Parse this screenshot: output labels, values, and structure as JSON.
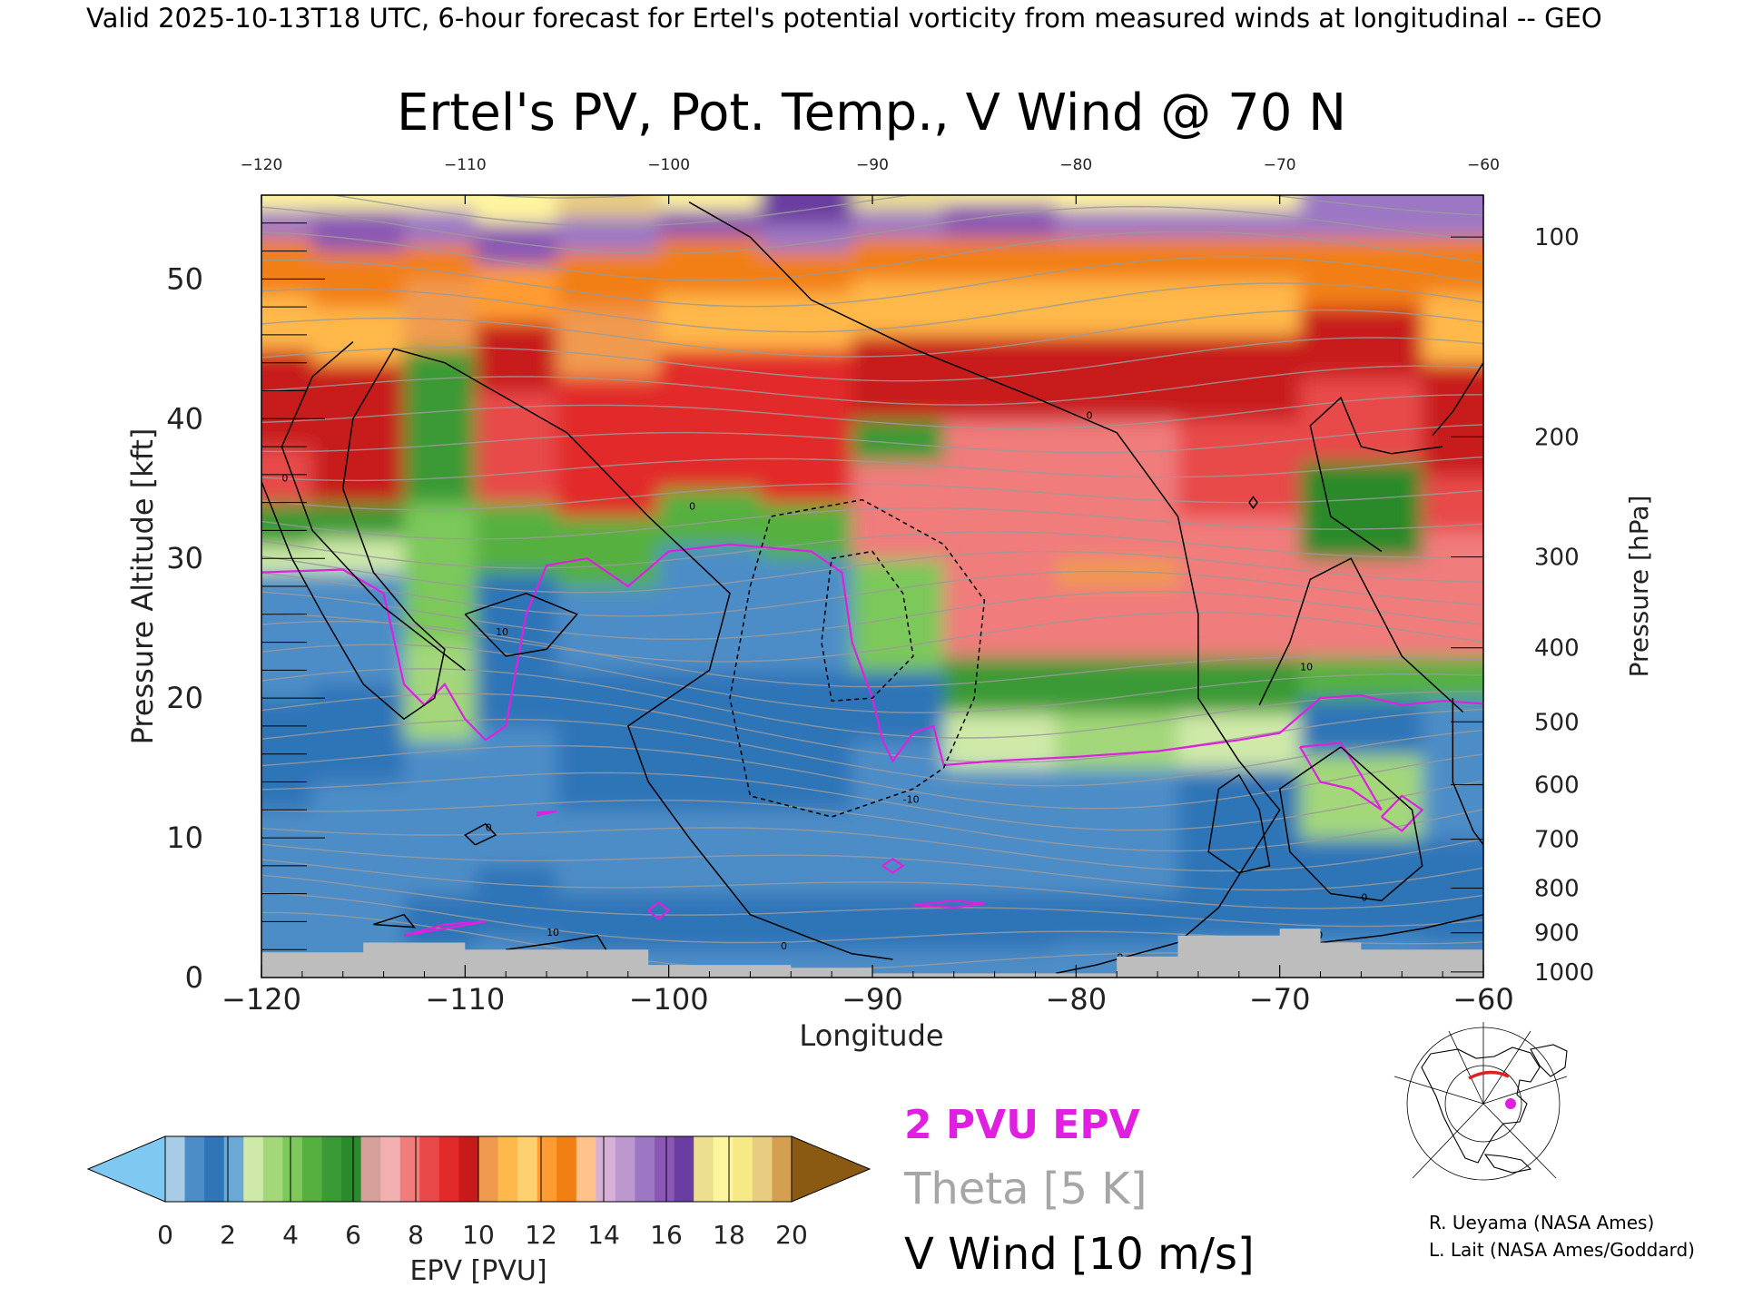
{
  "header": {
    "valid_line": "Valid 2025-10-13T18 UTC, 6-hour forecast for Ertel's potential vorticity from measured winds at longitudinal -- GEO"
  },
  "chart_data": {
    "type": "heatmap",
    "title": "Ertel's PV, Pot. Temp., V Wind @ 70 N",
    "xlabel": "Longitude",
    "ylabel_left": "Pressure Altitude [kft]",
    "ylabel_right": "Pressure [hPa]",
    "xlim": [
      -120,
      -60
    ],
    "ylim": [
      0,
      56
    ],
    "x_ticks": [
      -120,
      -110,
      -100,
      -90,
      -80,
      -70,
      -60
    ],
    "x_tick_labels": [
      "−120",
      "−110",
      "−100",
      "−90",
      "−80",
      "−70",
      "−60"
    ],
    "y_ticks": [
      0,
      10,
      20,
      30,
      40,
      50
    ],
    "y_tick_labels": [
      "0",
      "10",
      "20",
      "30",
      "40",
      "50"
    ],
    "pressure_ticks": [
      {
        "label": "100",
        "kft": 53.0
      },
      {
        "label": "200",
        "kft": 38.7
      },
      {
        "label": "300",
        "kft": 30.1
      },
      {
        "label": "400",
        "kft": 23.6
      },
      {
        "label": "500",
        "kft": 18.3
      },
      {
        "label": "600",
        "kft": 13.8
      },
      {
        "label": "700",
        "kft": 9.9
      },
      {
        "label": "800",
        "kft": 6.4
      },
      {
        "label": "900",
        "kft": 3.2
      },
      {
        "label": "1000",
        "kft": 0.4
      }
    ],
    "pv_field_columns": [
      {
        "x": -120,
        "layers": [
          [
            0,
            2.0,
            0.9
          ],
          [
            2.0,
            4.0,
            1.2
          ],
          [
            4.0,
            8.0,
            0.8
          ],
          [
            8.0,
            12.0,
            0.7
          ],
          [
            12.0,
            20.0,
            1.3
          ],
          [
            20.0,
            29.0,
            1.2
          ],
          [
            29.0,
            31.0,
            3.0
          ],
          [
            31.0,
            34.0,
            5.0
          ],
          [
            34.0,
            38.0,
            8.5
          ],
          [
            38.0,
            45.0,
            9.5
          ],
          [
            45.0,
            49.0,
            11.0
          ],
          [
            49.0,
            53.0,
            12.5
          ],
          [
            53.0,
            55.0,
            15.5
          ],
          [
            55.0,
            56.0,
            18.0
          ]
        ]
      },
      {
        "x": -115,
        "layers": [
          [
            0,
            2.0,
            0.9
          ],
          [
            2.0,
            5.0,
            1.2
          ],
          [
            5.0,
            10.0,
            0.8
          ],
          [
            10.0,
            14.0,
            1.0
          ],
          [
            14.0,
            21.0,
            1.3
          ],
          [
            21.0,
            29.0,
            1.2
          ],
          [
            29.0,
            31.5,
            3.0
          ],
          [
            31.5,
            34.0,
            5.5
          ],
          [
            34.0,
            44.0,
            9.5
          ],
          [
            44.0,
            48.0,
            11.0
          ],
          [
            48.0,
            52.0,
            12.5
          ],
          [
            52.0,
            55.0,
            16.0
          ],
          [
            55.0,
            56.0,
            18.0
          ]
        ]
      },
      {
        "x": -111,
        "layers": [
          [
            0,
            2.0,
            1.0
          ],
          [
            2.0,
            6.0,
            1.3
          ],
          [
            6.0,
            12.0,
            0.9
          ],
          [
            12.0,
            17.0,
            1.2
          ],
          [
            17.0,
            24.0,
            3.2
          ],
          [
            24.0,
            34.0,
            3.8
          ],
          [
            34.0,
            45.0,
            5.2
          ],
          [
            45.0,
            50.0,
            10.0
          ],
          [
            50.0,
            52.5,
            12.5
          ],
          [
            52.5,
            55.0,
            15.5
          ],
          [
            55.0,
            56.0,
            18.0
          ]
        ]
      },
      {
        "x": -108,
        "layers": [
          [
            0,
            3.0,
            1.0
          ],
          [
            3.0,
            8.0,
            1.3
          ],
          [
            8.0,
            18.0,
            1.2
          ],
          [
            18.0,
            29.0,
            1.4
          ],
          [
            29.0,
            34.0,
            4.8
          ],
          [
            34.0,
            42.0,
            8.5
          ],
          [
            42.0,
            47.0,
            9.5
          ],
          [
            47.0,
            51.0,
            12.0
          ],
          [
            51.0,
            54.0,
            16.0
          ],
          [
            54.0,
            56.0,
            18.0
          ]
        ]
      },
      {
        "x": -103,
        "layers": [
          [
            0,
            2.0,
            1.0
          ],
          [
            2.0,
            6.0,
            1.3
          ],
          [
            6.0,
            12.0,
            0.8
          ],
          [
            12.0,
            22.0,
            1.3
          ],
          [
            22.0,
            28.0,
            1.2
          ],
          [
            28.0,
            33.0,
            4.5
          ],
          [
            33.0,
            43.0,
            9.0
          ],
          [
            43.0,
            48.0,
            10.5
          ],
          [
            48.0,
            52.0,
            12.5
          ],
          [
            52.0,
            54.5,
            15.5
          ],
          [
            54.5,
            56.0,
            19.0
          ]
        ]
      },
      {
        "x": -98,
        "layers": [
          [
            0,
            2.0,
            1.0
          ],
          [
            2.0,
            6.0,
            1.4
          ],
          [
            6.0,
            12.0,
            0.9
          ],
          [
            12.0,
            22.0,
            1.3
          ],
          [
            22.0,
            31.0,
            1.2
          ],
          [
            31.0,
            35.0,
            4.8
          ],
          [
            35.0,
            45.0,
            9.0
          ],
          [
            45.0,
            49.0,
            11.0
          ],
          [
            49.0,
            53.0,
            12.5
          ],
          [
            53.0,
            55.0,
            16.0
          ],
          [
            55.0,
            56.0,
            18.0
          ]
        ]
      },
      {
        "x": -93,
        "layers": [
          [
            0,
            2.0,
            1.0
          ],
          [
            2.0,
            6.0,
            1.3
          ],
          [
            6.0,
            12.0,
            0.8
          ],
          [
            12.0,
            22.0,
            1.3
          ],
          [
            22.0,
            30.0,
            1.2
          ],
          [
            30.0,
            34.0,
            4.8
          ],
          [
            34.0,
            45.0,
            9.0
          ],
          [
            45.0,
            49.0,
            11.0
          ],
          [
            49.0,
            52.0,
            12.5
          ],
          [
            52.0,
            54.0,
            15.5
          ],
          [
            54.0,
            56.0,
            16.5
          ]
        ]
      },
      {
        "x": -89,
        "layers": [
          [
            0,
            2.0,
            1.0
          ],
          [
            2.0,
            6.0,
            1.3
          ],
          [
            6.0,
            12.0,
            0.8
          ],
          [
            12.0,
            17.0,
            1.2
          ],
          [
            17.0,
            22.0,
            1.3
          ],
          [
            22.0,
            30.0,
            4.2
          ],
          [
            30.0,
            37.0,
            7.5
          ],
          [
            37.0,
            40.0,
            5.0
          ],
          [
            40.0,
            46.0,
            9.5
          ],
          [
            46.0,
            50.0,
            11.0
          ],
          [
            50.0,
            53.0,
            12.5
          ],
          [
            53.0,
            55.0,
            15.5
          ],
          [
            55.0,
            56.0,
            17.0
          ]
        ]
      },
      {
        "x": -84,
        "layers": [
          [
            0,
            2.0,
            1.0
          ],
          [
            2.0,
            6.0,
            1.3
          ],
          [
            6.0,
            15.0,
            0.9
          ],
          [
            15.0,
            19.0,
            3.0
          ],
          [
            19.0,
            23.0,
            5.0
          ],
          [
            23.0,
            40.0,
            7.5
          ],
          [
            40.0,
            46.0,
            9.5
          ],
          [
            46.0,
            50.0,
            11.0
          ],
          [
            50.0,
            53.0,
            12.5
          ],
          [
            53.0,
            55.5,
            16.0
          ],
          [
            55.5,
            56.0,
            18.0
          ]
        ]
      },
      {
        "x": -78,
        "layers": [
          [
            0,
            2.5,
            1.0
          ],
          [
            2.5,
            6.0,
            1.3
          ],
          [
            6.0,
            15.0,
            0.9
          ],
          [
            15.0,
            19.0,
            3.2
          ],
          [
            19.0,
            23.0,
            5.0
          ],
          [
            23.0,
            28.0,
            7.8
          ],
          [
            28.0,
            30.0,
            10.5
          ],
          [
            30.0,
            40.0,
            7.8
          ],
          [
            40.0,
            46.0,
            9.5
          ],
          [
            46.0,
            50.0,
            11.0
          ],
          [
            50.0,
            53.0,
            12.5
          ],
          [
            53.0,
            55.0,
            15.5
          ],
          [
            55.0,
            56.0,
            18.0
          ]
        ]
      },
      {
        "x": -72,
        "layers": [
          [
            0,
            3.0,
            1.0
          ],
          [
            3.0,
            10.0,
            1.3
          ],
          [
            10.0,
            15.0,
            1.4
          ],
          [
            15.0,
            19.0,
            3.0
          ],
          [
            19.0,
            23.0,
            5.0
          ],
          [
            23.0,
            33.0,
            7.8
          ],
          [
            33.0,
            40.0,
            8.5
          ],
          [
            40.0,
            46.0,
            9.5
          ],
          [
            46.0,
            50.0,
            11.0
          ],
          [
            50.0,
            53.0,
            12.5
          ],
          [
            53.0,
            55.0,
            15.5
          ],
          [
            55.0,
            56.0,
            18.0
          ]
        ]
      },
      {
        "x": -66,
        "layers": [
          [
            0,
            3.0,
            1.0
          ],
          [
            3.0,
            10.0,
            1.3
          ],
          [
            10.0,
            16.0,
            3.2
          ],
          [
            16.0,
            20.0,
            1.4
          ],
          [
            20.0,
            23.0,
            4.8
          ],
          [
            23.0,
            30.0,
            7.8
          ],
          [
            30.0,
            37.0,
            6.0
          ],
          [
            37.0,
            43.0,
            8.5
          ],
          [
            43.0,
            48.0,
            9.5
          ],
          [
            48.0,
            53.0,
            12.5
          ],
          [
            53.0,
            56.0,
            15.0
          ]
        ]
      },
      {
        "x": -60,
        "layers": [
          [
            0,
            2.5,
            1.0
          ],
          [
            2.5,
            10.0,
            1.3
          ],
          [
            10.0,
            20.0,
            1.2
          ],
          [
            20.0,
            23.0,
            4.8
          ],
          [
            23.0,
            32.0,
            7.8
          ],
          [
            32.0,
            36.0,
            8.5
          ],
          [
            36.0,
            44.0,
            9.5
          ],
          [
            44.0,
            49.0,
            11.0
          ],
          [
            49.0,
            53.0,
            12.5
          ],
          [
            53.0,
            56.0,
            15.0
          ]
        ]
      }
    ],
    "terrain_kft": [
      [
        -120,
        1.8
      ],
      [
        -116,
        1.8
      ],
      [
        -115,
        2.5
      ],
      [
        -111,
        2.5
      ],
      [
        -110,
        2.0
      ],
      [
        -104,
        2.0
      ],
      [
        -101,
        0.9
      ],
      [
        -94,
        0.7
      ],
      [
        -90,
        0.3
      ],
      [
        -80,
        0.3
      ],
      [
        -78,
        1.5
      ],
      [
        -75,
        3.0
      ],
      [
        -70,
        3.5
      ],
      [
        -68,
        2.5
      ],
      [
        -66,
        2.0
      ],
      [
        -60,
        1.6
      ]
    ],
    "contour_labels": [
      "0",
      "10",
      "-10"
    ],
    "legend": {
      "pv_line": "2 PVU EPV",
      "theta": "Theta [5 K]",
      "vwind": "V Wind [10 m/s]"
    },
    "colorbar": {
      "label": "EPV [PVU]",
      "tick_labels": [
        "0",
        "2",
        "4",
        "6",
        "8",
        "10",
        "12",
        "14",
        "16",
        "18",
        "20"
      ],
      "under_color": "#7ec8f2",
      "over_color": "#8b5a12",
      "colors": [
        "#a9cce6",
        "#4d8dc7",
        "#2f75b8",
        "#6aa8d6",
        "#cfe9a8",
        "#a3d77a",
        "#7cc85a",
        "#55b040",
        "#3a9a36",
        "#2a8a2c",
        "#d5a09a",
        "#f2b0b0",
        "#f07c7c",
        "#e84848",
        "#e22a2a",
        "#c81a1a",
        "#f09a50",
        "#ffb84a",
        "#ffd070",
        "#ff9b30",
        "#f27f14",
        "#ffc28a",
        "#d6b0d6",
        "#bc98cf",
        "#9c78c4",
        "#8a58b4",
        "#6a3ea0",
        "#ecdf90",
        "#fff59e",
        "#f5ea86",
        "#e8cc80",
        "#d2a050"
      ]
    },
    "credits": [
      "R. Ueyama (NASA Ames)",
      "L. Lait (NASA Ames/Goddard)"
    ]
  },
  "colors": {
    "pv2_line": "#e020e0",
    "theta_line": "#9a9a9a",
    "vwind_line": "#000000",
    "terrain": "#bdbdbd"
  }
}
